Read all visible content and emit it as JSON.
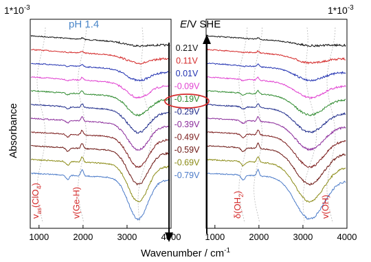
{
  "chart_data": {
    "type": "line",
    "xlabel": "Wavenumber / cm",
    "xlabel_superscript": "-1",
    "ylabel": "Absorbance",
    "condition": "pH 1.4",
    "potential_header": {
      "prefix": "E",
      "suffix": "/V SHE"
    },
    "scale_label": "1*10",
    "scale_exponent": "-3",
    "xlim": [
      800,
      4000
    ],
    "xticks": [
      1000,
      2000,
      3000,
      4000
    ],
    "xtick_labels": [
      "1000",
      "2000",
      "3000",
      "4000"
    ],
    "highlighted_potential": "-0.19V",
    "series": [
      {
        "name": "0.21V",
        "color": "#111111"
      },
      {
        "name": "0.11V",
        "color": "#d42a2a"
      },
      {
        "name": "0.01V",
        "color": "#1f2fb0"
      },
      {
        "name": "-0.09V",
        "color": "#e040d0"
      },
      {
        "name": "-0.19V",
        "color": "#2e8a2e"
      },
      {
        "name": "-0.29V",
        "color": "#1d2a8a"
      },
      {
        "name": "-0.39V",
        "color": "#8a2a9a"
      },
      {
        "name": "-0.49V",
        "color": "#7a1a1a"
      },
      {
        "name": "-0.59V",
        "color": "#6a1410"
      },
      {
        "name": "-0.69V",
        "color": "#8a8a14"
      },
      {
        "name": "-0.79V",
        "color": "#4a7ac8"
      }
    ],
    "left_panel_annotations": [
      {
        "text": "v",
        "sub": "as",
        "rest": "(ClO",
        "sub2": "4",
        "end": ")",
        "x": 1050
      },
      {
        "text": "v(Ge-H)",
        "x": 1980
      }
    ],
    "right_panel_annotations": [
      {
        "text": "δ(OH",
        "sub": "2",
        "end": ")",
        "x": 1640
      },
      {
        "text": "v(OH)",
        "x": 3640
      }
    ]
  },
  "colors": {
    "accent_text": "#d42a2a",
    "condition_text": "#4a86c8",
    "axis": "#000000",
    "highlight": "#d42a2a"
  }
}
